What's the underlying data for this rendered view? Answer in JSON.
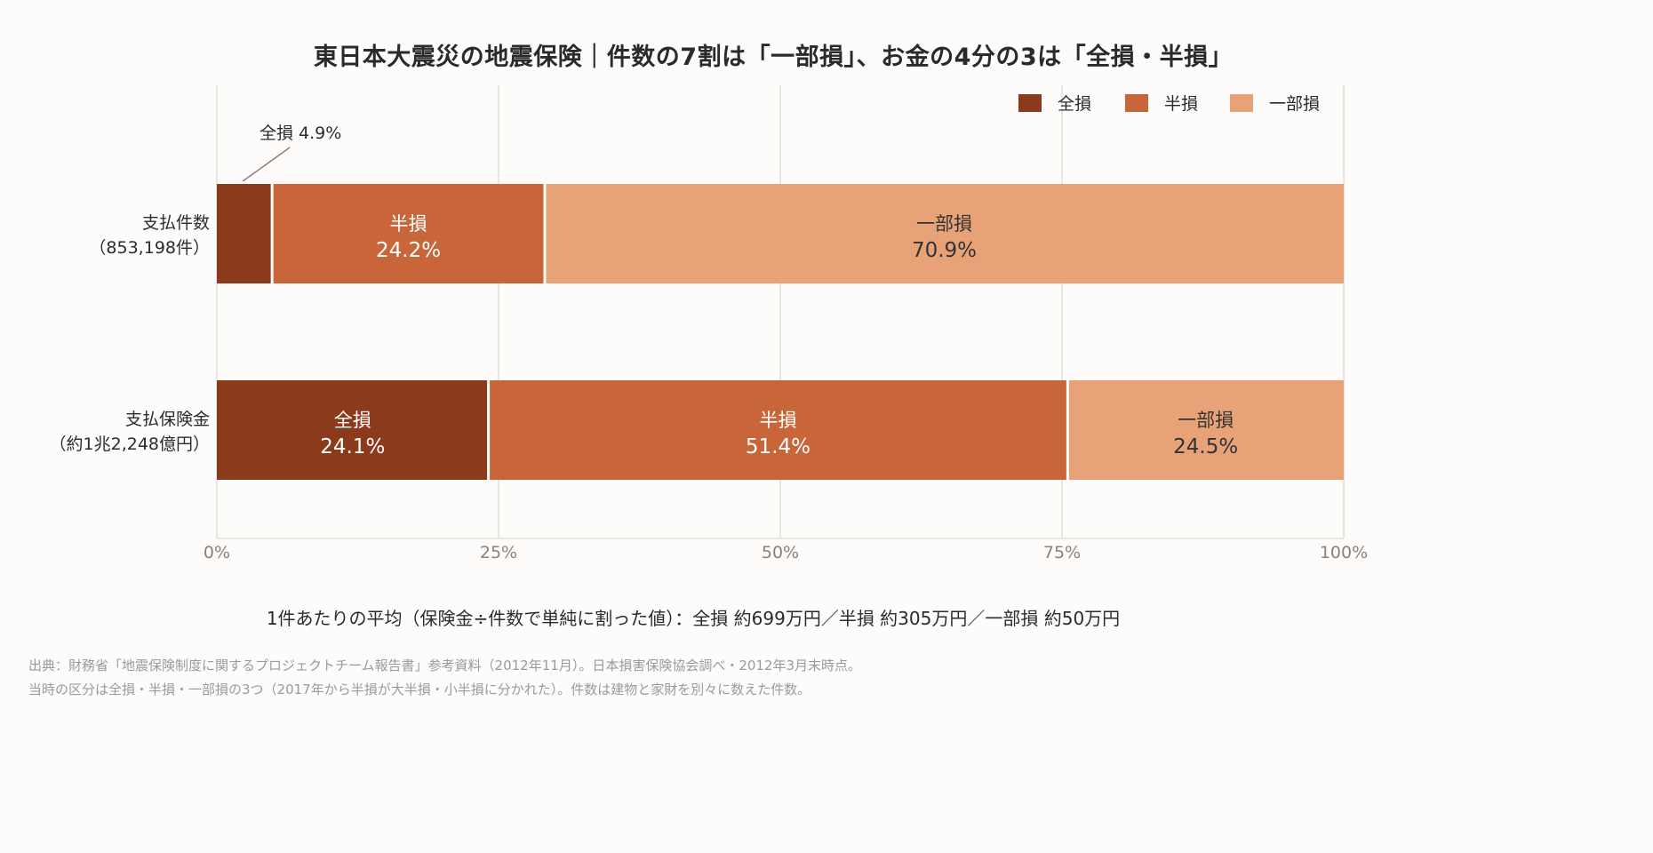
{
  "title": "東日本大震災の地震保険｜件数の7割は「一部損」、お金の4分の3は「全損・半損」",
  "chart_data": {
    "type": "bar",
    "orientation": "horizontal",
    "stacked": true,
    "categories": [
      {
        "label_line1": "支払件数",
        "label_line2": "（853,198件）"
      },
      {
        "label_line1": "支払保険金",
        "label_line2": "（約1兆2,248億円）"
      }
    ],
    "series": [
      {
        "name": "全損",
        "color": "#8b3a1c",
        "values": [
          4.9,
          24.1
        ],
        "value_labels": [
          "4.9%",
          "24.1%"
        ],
        "text_color": "#ffffff"
      },
      {
        "name": "半損",
        "color": "#c8663a",
        "values": [
          24.2,
          51.4
        ],
        "value_labels": [
          "24.2%",
          "51.4%"
        ],
        "text_color": "#ffffff"
      },
      {
        "name": "一部損",
        "color": "#e8a278",
        "values": [
          70.9,
          24.5
        ],
        "value_labels": [
          "70.9%",
          "24.5%"
        ],
        "text_color": "#333333"
      }
    ],
    "callout": "全損 4.9%",
    "xlim": [
      0,
      100
    ],
    "xticks": [
      "0%",
      "25%",
      "50%",
      "75%",
      "100%"
    ],
    "grid": true,
    "legend_position": "top-right"
  },
  "note": "1件あたりの平均（保険金÷件数で単純に割った値）：全損 約699万円／半損 約305万円／一部損 約50万円",
  "source": [
    "出典：財務省「地震保険制度に関するプロジェクトチーム報告書」参考資料（2012年11月）。日本損害保険協会調べ・2012年3月末時点。",
    "当時の区分は全損・半損・一部損の3つ（2017年から半損が大半損・小半損に分かれた）。件数は建物と家財を別々に数えた件数。"
  ]
}
